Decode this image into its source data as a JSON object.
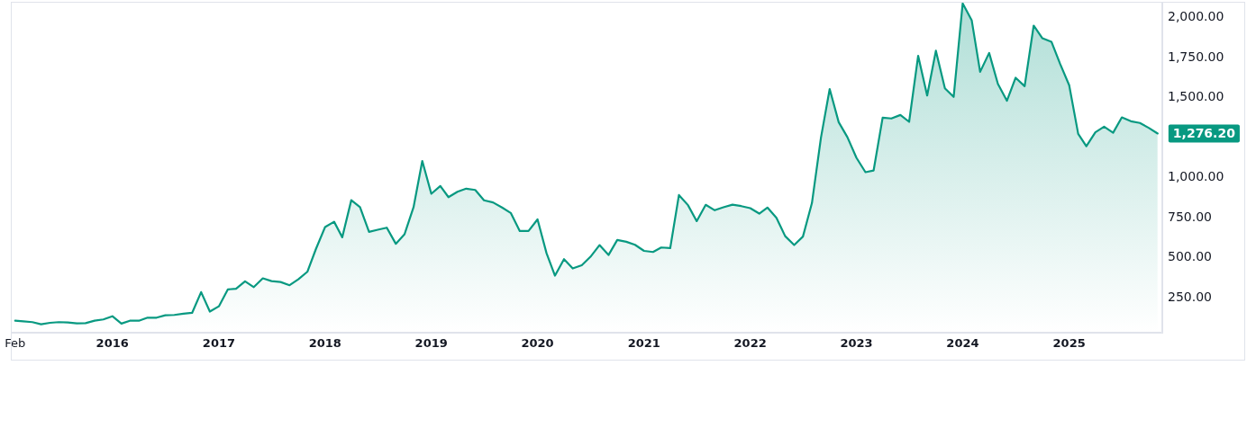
{
  "chart_data": {
    "type": "area",
    "x": [
      "2015-02",
      "2015-03",
      "2015-04",
      "2015-05",
      "2015-06",
      "2015-07",
      "2015-08",
      "2015-09",
      "2015-10",
      "2015-11",
      "2015-12",
      "2016-01",
      "2016-02",
      "2016-03",
      "2016-04",
      "2016-05",
      "2016-06",
      "2016-07",
      "2016-08",
      "2016-09",
      "2016-10",
      "2016-11",
      "2016-12",
      "2017-01",
      "2017-02",
      "2017-03",
      "2017-04",
      "2017-05",
      "2017-06",
      "2017-07",
      "2017-08",
      "2017-09",
      "2017-10",
      "2017-11",
      "2017-12",
      "2018-01",
      "2018-02",
      "2018-03",
      "2018-04",
      "2018-05",
      "2018-06",
      "2018-07",
      "2018-08",
      "2018-09",
      "2018-10",
      "2018-11",
      "2018-12",
      "2019-01",
      "2019-02",
      "2019-03",
      "2019-04",
      "2019-05",
      "2019-06",
      "2019-07",
      "2019-08",
      "2019-09",
      "2019-10",
      "2019-11",
      "2019-12",
      "2020-01",
      "2020-02",
      "2020-03",
      "2020-04",
      "2020-05",
      "2020-06",
      "2020-07",
      "2020-08",
      "2020-09",
      "2020-10",
      "2020-11",
      "2020-12",
      "2021-01",
      "2021-02",
      "2021-03",
      "2021-04",
      "2021-05",
      "2021-06",
      "2021-07",
      "2021-08",
      "2021-09",
      "2021-10",
      "2021-11",
      "2021-12",
      "2022-01",
      "2022-02",
      "2022-03",
      "2022-04",
      "2022-05",
      "2022-06",
      "2022-07",
      "2022-08",
      "2022-09",
      "2022-10",
      "2022-11",
      "2022-12",
      "2023-01",
      "2023-02",
      "2023-03",
      "2023-04",
      "2023-05",
      "2023-06",
      "2023-07",
      "2023-08",
      "2023-09",
      "2023-10",
      "2023-11",
      "2023-12",
      "2024-01",
      "2024-02",
      "2024-03",
      "2024-04",
      "2024-05",
      "2024-06",
      "2024-07",
      "2024-08",
      "2024-09",
      "2024-10",
      "2024-11",
      "2024-12",
      "2025-01",
      "2025-02",
      "2025-03",
      "2025-04",
      "2025-05",
      "2025-06",
      "2025-07",
      "2025-08",
      "2025-09",
      "2025-10",
      "2025-11"
    ],
    "values": [
      105,
      101,
      96,
      83,
      92,
      96,
      94,
      88,
      90,
      105,
      113,
      133,
      87,
      105,
      105,
      124,
      124,
      139,
      141,
      149,
      154,
      284,
      162,
      195,
      301,
      305,
      351,
      315,
      370,
      353,
      347,
      327,
      364,
      411,
      556,
      691,
      724,
      627,
      859,
      816,
      661,
      674,
      687,
      586,
      646,
      815,
      1104,
      899,
      948,
      878,
      912,
      931,
      923,
      858,
      845,
      813,
      779,
      666,
      666,
      739,
      527,
      387,
      490,
      432,
      452,
      505,
      578,
      516,
      610,
      599,
      580,
      542,
      535,
      563,
      559,
      891,
      828,
      728,
      830,
      796,
      815,
      831,
      822,
      809,
      775,
      813,
      749,
      634,
      578,
      631,
      841,
      1250,
      1554,
      1347,
      1253,
      1124,
      1034,
      1045,
      1375,
      1370,
      1392,
      1349,
      1762,
      1514,
      1794,
      1559,
      1505,
      2090,
      1985,
      1662,
      1780,
      1587,
      1481,
      1625,
      1572,
      1951,
      1872,
      1850,
      1711,
      1578,
      1274,
      1197,
      1284,
      1319,
      1281,
      1377,
      1353,
      1342,
      1312,
      1276.2
    ],
    "value_labels": [
      null,
      null,
      null,
      null,
      null,
      null,
      null,
      null,
      null,
      null,
      null,
      null,
      null,
      null,
      null,
      null,
      null,
      null,
      null,
      null,
      null,
      null,
      null,
      null,
      null,
      null,
      null,
      null,
      null,
      null,
      null,
      null,
      null,
      null,
      null,
      null,
      null,
      null,
      null,
      null,
      null,
      null,
      null,
      null,
      null,
      null,
      null,
      null,
      null,
      null,
      null,
      null,
      null,
      null,
      null,
      null,
      null,
      null,
      null,
      null,
      null,
      null,
      null,
      null,
      null,
      null,
      null,
      null,
      null,
      null,
      null,
      null,
      null,
      null,
      null,
      null,
      null,
      null,
      null,
      null,
      null,
      null,
      null,
      null,
      null,
      null,
      null,
      null,
      null,
      null,
      null,
      null,
      null,
      null,
      null,
      null,
      null,
      null,
      null,
      null,
      null,
      null,
      null,
      null,
      null,
      null,
      null,
      null,
      null,
      null,
      null,
      null,
      null,
      null,
      null,
      null,
      null,
      null,
      null,
      null,
      null,
      null,
      null,
      null,
      null,
      null,
      null,
      null,
      null,
      "1,276.20"
    ],
    "color": "#089981",
    "xlim": [
      "2015-01-17",
      "2025-11-17"
    ],
    "xticks": [
      {
        "value": "2015-02",
        "label": "Feb"
      },
      {
        "value": "2016",
        "label": "2016"
      },
      {
        "value": "2017",
        "label": "2017"
      },
      {
        "value": "2018",
        "label": "2018"
      },
      {
        "value": "2019",
        "label": "2019"
      },
      {
        "value": "2020",
        "label": "2020"
      },
      {
        "value": "2021",
        "label": "2021"
      },
      {
        "value": "2022",
        "label": "2022"
      },
      {
        "value": "2023",
        "label": "2023"
      },
      {
        "value": "2024",
        "label": "2024"
      },
      {
        "value": "2025",
        "label": "2025"
      }
    ],
    "ylim": [
      30,
      2100
    ],
    "yticks": [
      {
        "value": 250,
        "label": "250.00"
      },
      {
        "value": 500,
        "label": "500.00"
      },
      {
        "value": 750,
        "label": "750.00"
      },
      {
        "value": 1000,
        "label": "1,000.00"
      },
      {
        "value": 1500,
        "label": "1,500.00"
      },
      {
        "value": 1750,
        "label": "1,750.00"
      },
      {
        "value": 2000,
        "label": "2,000.00"
      }
    ],
    "grid": false,
    "legend": false,
    "marker": "none",
    "line_style": "solid"
  }
}
